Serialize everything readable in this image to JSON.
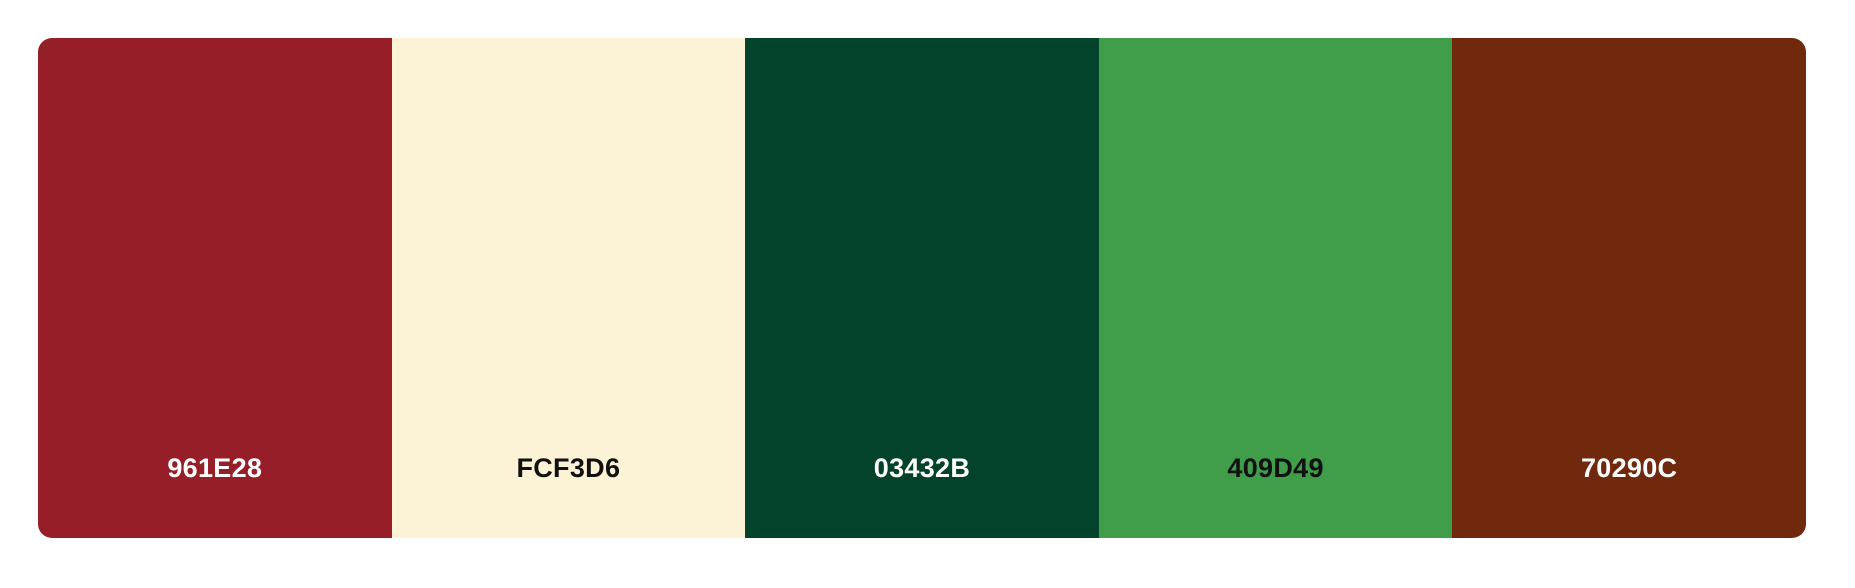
{
  "palette": {
    "swatches": [
      {
        "hex": "961E28",
        "color": "#961E28",
        "text_color": "#FFFFFF"
      },
      {
        "hex": "FCF3D6",
        "color": "#FCF3D6",
        "text_color": "#111111"
      },
      {
        "hex": "03432B",
        "color": "#03432B",
        "text_color": "#FFFFFF"
      },
      {
        "hex": "409D49",
        "color": "#409D49",
        "text_color": "#111111"
      },
      {
        "hex": "70290C",
        "color": "#70290C",
        "text_color": "#FFFFFF"
      }
    ]
  }
}
